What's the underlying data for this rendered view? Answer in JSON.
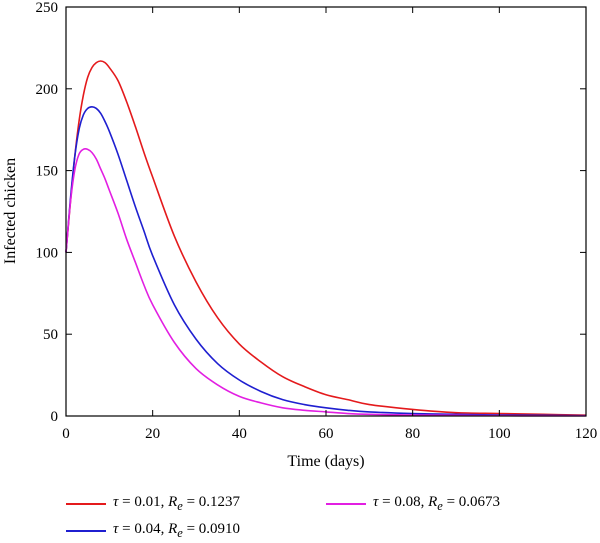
{
  "chart_data": {
    "type": "line",
    "title": "",
    "xlabel": "Time (days)",
    "ylabel": "Infected chicken",
    "xlim": [
      0,
      120
    ],
    "ylim": [
      0,
      250
    ],
    "xticks": [
      0,
      20,
      40,
      60,
      80,
      100,
      120
    ],
    "yticks": [
      0,
      50,
      100,
      150,
      200,
      250
    ],
    "grid": false,
    "legend_position": "bottom",
    "series": [
      {
        "name": "τ = 0.01, Re = 0.1237",
        "label_parts": {
          "param": "τ",
          "param_value": "0.01",
          "re_symbol": "R",
          "re_sub": "e",
          "re_value": "0.1237"
        },
        "color": "#e41a1c",
        "x": [
          0,
          1,
          2,
          3,
          4,
          5,
          6,
          7,
          8,
          9,
          10,
          12,
          14,
          16,
          18,
          20,
          25,
          30,
          35,
          40,
          45,
          50,
          55,
          60,
          65,
          70,
          80,
          90,
          100,
          110,
          120
        ],
        "y": [
          100,
          130,
          158,
          180,
          196,
          207,
          213,
          216,
          217,
          216,
          213,
          205,
          192,
          177,
          161,
          146,
          110,
          82,
          60,
          44,
          33,
          24,
          18,
          13,
          10,
          7,
          4,
          2,
          1.5,
          1,
          0.5
        ]
      },
      {
        "name": "τ = 0.04, Re = 0.0910",
        "label_parts": {
          "param": "τ",
          "param_value": "0.04",
          "re_symbol": "R",
          "re_sub": "e",
          "re_value": "0.0910"
        },
        "color": "#1f1fd0",
        "x": [
          0,
          1,
          2,
          3,
          4,
          5,
          6,
          7,
          8,
          9,
          10,
          12,
          14,
          16,
          18,
          20,
          25,
          30,
          35,
          40,
          45,
          50,
          55,
          60,
          65,
          70,
          80,
          90,
          100,
          110,
          120
        ],
        "y": [
          100,
          132,
          158,
          175,
          184,
          188,
          189,
          188,
          185,
          180,
          174,
          160,
          144,
          128,
          113,
          98,
          68,
          47,
          32,
          22,
          15,
          10,
          7,
          5,
          3.5,
          2.5,
          1.5,
          1,
          0.6,
          0.4,
          0.2
        ]
      },
      {
        "name": "τ = 0.08, Re = 0.0673",
        "label_parts": {
          "param": "τ",
          "param_value": "0.08",
          "re_symbol": "R",
          "re_sub": "e",
          "re_value": "0.0673"
        },
        "color": "#e21fe2",
        "x": [
          0,
          1,
          2,
          3,
          4,
          5,
          6,
          7,
          8,
          9,
          10,
          12,
          14,
          16,
          18,
          20,
          25,
          30,
          35,
          40,
          45,
          50,
          55,
          60,
          65,
          70,
          80,
          90,
          100,
          110,
          120
        ],
        "y": [
          100,
          130,
          150,
          160,
          163,
          163,
          161,
          157,
          151,
          145,
          138,
          124,
          108,
          94,
          80,
          68,
          45,
          29,
          19,
          12,
          8,
          5,
          3.5,
          2.5,
          1.5,
          1,
          0.6,
          0.4,
          0.2,
          0.1,
          0.1
        ]
      }
    ]
  }
}
